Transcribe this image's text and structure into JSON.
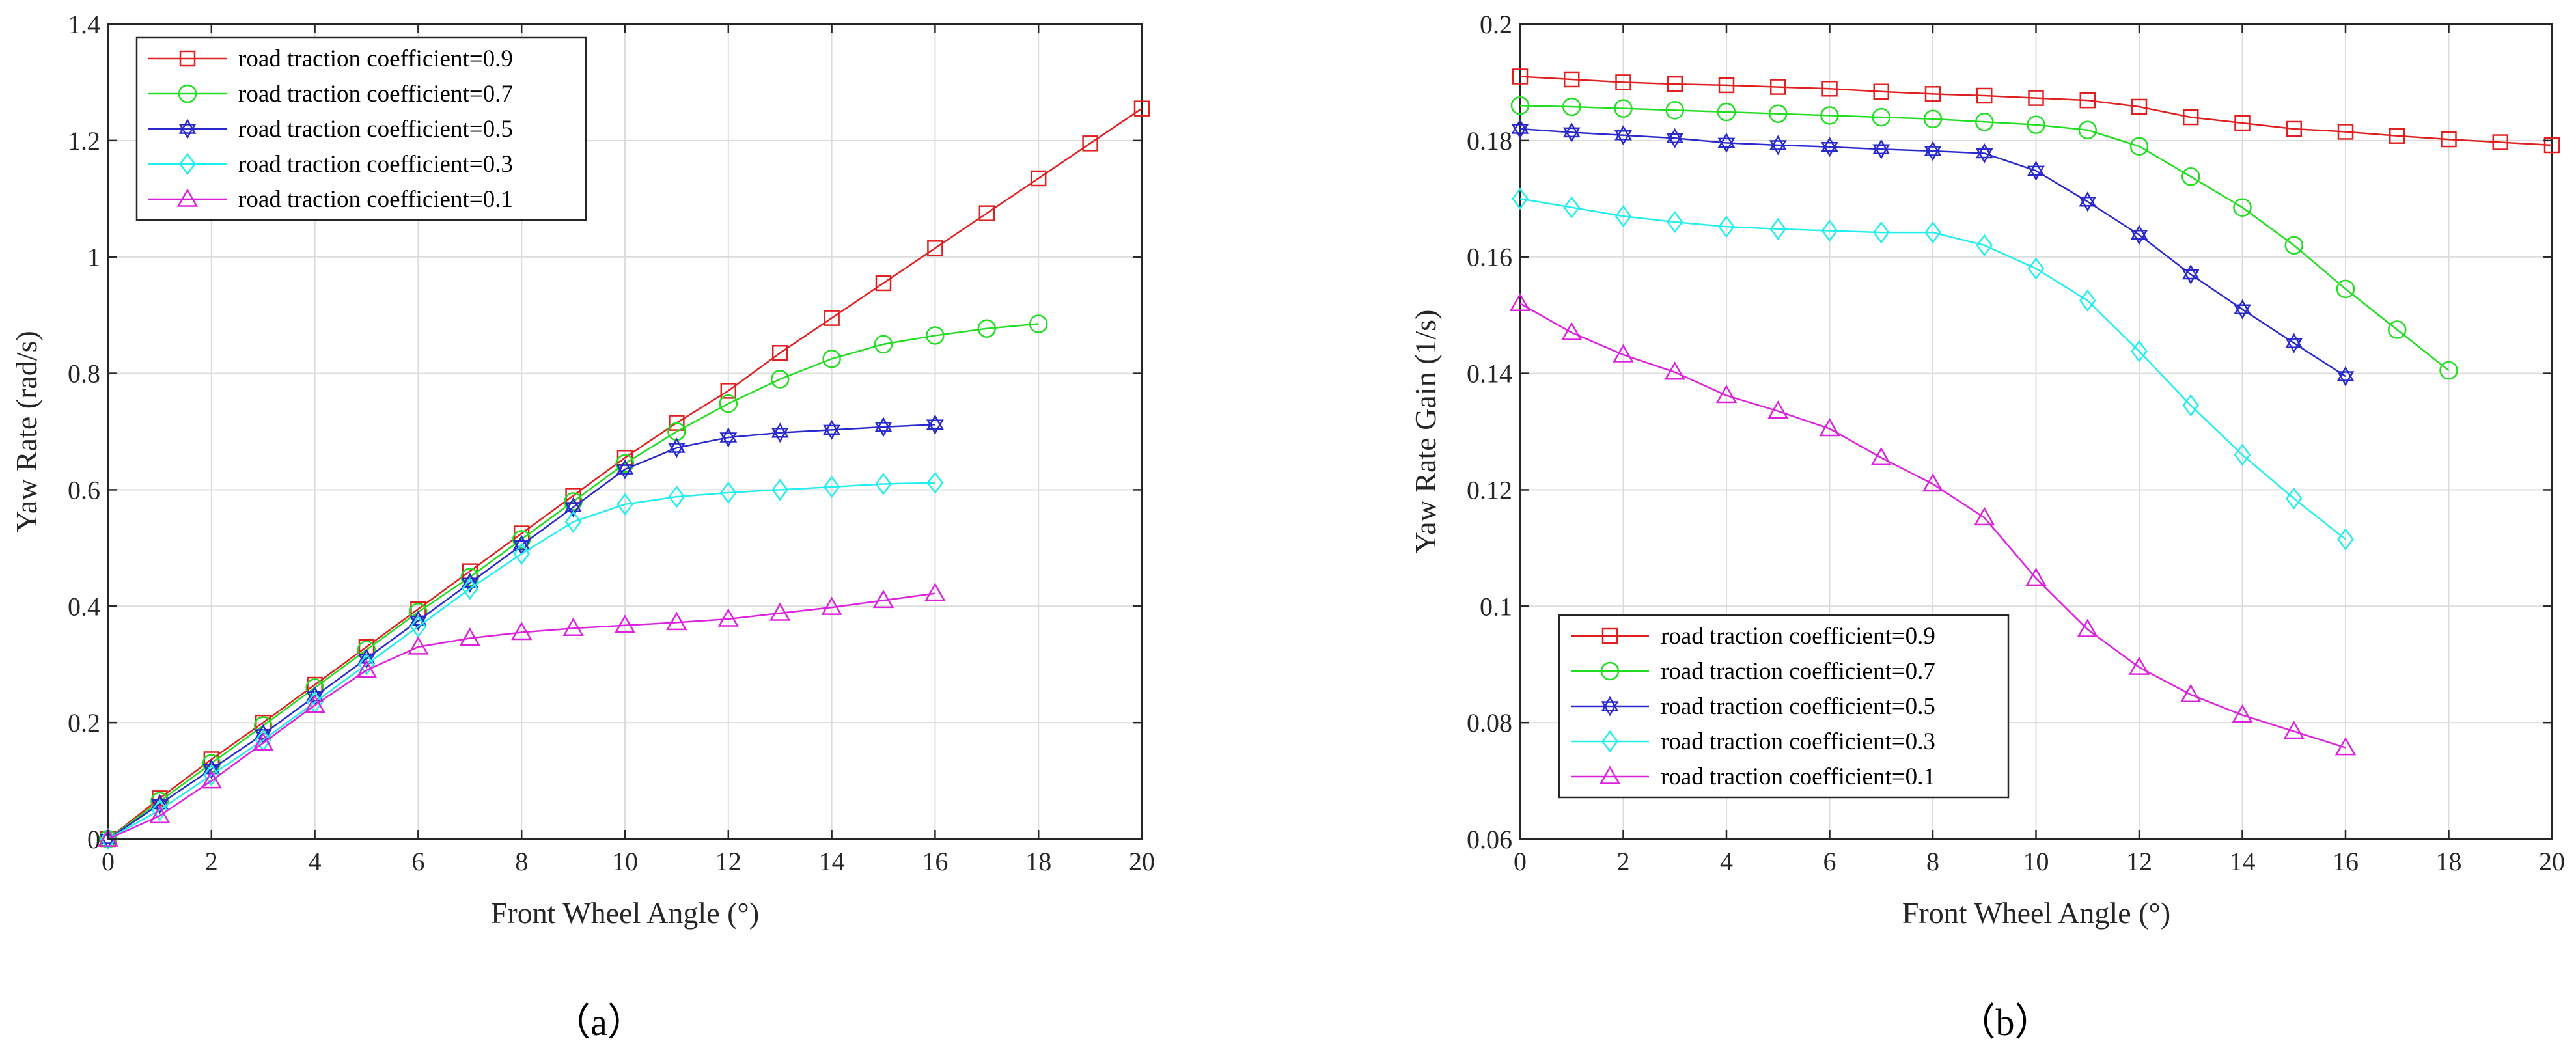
{
  "chart_data": [
    {
      "type": "line",
      "panel": "a",
      "caption": "（a）",
      "title": "",
      "xlabel": "Front Wheel Angle (°)",
      "ylabel": "Yaw Rate (rad/s)",
      "xlim": [
        0,
        20
      ],
      "ylim": [
        0,
        1.4
      ],
      "xticks": [
        "0",
        "2",
        "4",
        "6",
        "8",
        "10",
        "12",
        "14",
        "16",
        "18",
        "20"
      ],
      "yticks": [
        "0",
        "0.2",
        "0.4",
        "0.6",
        "0.8",
        "1",
        "1.2",
        "1.4"
      ],
      "grid": true,
      "legend_position": "top-left",
      "series": [
        {
          "name": "road traction coefficient=0.9",
          "color": "#e02020",
          "marker": "square",
          "x": [
            0,
            1,
            2,
            3,
            4,
            5,
            6,
            7,
            8,
            9,
            10,
            11,
            12,
            13,
            14,
            15,
            16,
            17,
            18,
            19,
            20
          ],
          "values": [
            0,
            0.07,
            0.137,
            0.2,
            0.265,
            0.33,
            0.395,
            0.46,
            0.525,
            0.59,
            0.655,
            0.715,
            0.77,
            0.835,
            0.895,
            0.955,
            1.015,
            1.075,
            1.135,
            1.195,
            1.255
          ]
        },
        {
          "name": "road traction coefficient=0.7",
          "color": "#22dd22",
          "marker": "circle",
          "x": [
            0,
            1,
            2,
            3,
            4,
            5,
            6,
            7,
            8,
            9,
            10,
            11,
            12,
            13,
            14,
            15,
            16,
            17,
            18
          ],
          "values": [
            0,
            0.065,
            0.13,
            0.195,
            0.26,
            0.325,
            0.39,
            0.45,
            0.515,
            0.58,
            0.645,
            0.7,
            0.748,
            0.79,
            0.825,
            0.85,
            0.865,
            0.877,
            0.885
          ]
        },
        {
          "name": "road traction coefficient=0.5",
          "color": "#2a2acc",
          "marker": "hexagram",
          "x": [
            0,
            1,
            2,
            3,
            4,
            5,
            6,
            7,
            8,
            9,
            10,
            11,
            12,
            13,
            14,
            15,
            16
          ],
          "values": [
            0,
            0.06,
            0.12,
            0.18,
            0.245,
            0.31,
            0.375,
            0.44,
            0.505,
            0.57,
            0.635,
            0.672,
            0.69,
            0.698,
            0.703,
            0.708,
            0.712
          ]
        },
        {
          "name": "road traction coefficient=0.3",
          "color": "#22eeee",
          "marker": "diamond",
          "x": [
            0,
            1,
            2,
            3,
            4,
            5,
            6,
            7,
            8,
            9,
            10,
            11,
            12,
            13,
            14,
            15,
            16
          ],
          "values": [
            0,
            0.05,
            0.11,
            0.17,
            0.235,
            0.3,
            0.365,
            0.43,
            0.49,
            0.545,
            0.575,
            0.588,
            0.595,
            0.6,
            0.605,
            0.61,
            0.612
          ]
        },
        {
          "name": "road traction coefficient=0.1",
          "color": "#dd22dd",
          "marker": "triangle",
          "x": [
            0,
            1,
            2,
            3,
            4,
            5,
            6,
            7,
            8,
            9,
            10,
            11,
            12,
            13,
            14,
            15,
            16
          ],
          "values": [
            0,
            0.04,
            0.1,
            0.165,
            0.23,
            0.29,
            0.33,
            0.345,
            0.355,
            0.362,
            0.367,
            0.372,
            0.378,
            0.388,
            0.398,
            0.41,
            0.422
          ]
        }
      ]
    },
    {
      "type": "line",
      "panel": "b",
      "caption": "（b）",
      "title": "",
      "xlabel": "Front Wheel Angle (°)",
      "ylabel": "Yaw Rate Gain (1/s)",
      "xlim": [
        0,
        20
      ],
      "ylim": [
        0.06,
        0.2
      ],
      "xticks": [
        "0",
        "2",
        "4",
        "6",
        "8",
        "10",
        "12",
        "14",
        "16",
        "18",
        "20"
      ],
      "yticks": [
        "0.06",
        "0.08",
        "0.1",
        "0.12",
        "0.14",
        "0.16",
        "0.18",
        "0.2"
      ],
      "grid": true,
      "legend_position": "bottom-left",
      "series": [
        {
          "name": "road traction coefficient=0.9",
          "color": "#e02020",
          "marker": "square",
          "x": [
            0,
            1,
            2,
            3,
            4,
            5,
            6,
            7,
            8,
            9,
            10,
            11,
            12,
            13,
            14,
            15,
            16,
            17,
            18,
            19,
            20
          ],
          "values": [
            0.191,
            0.1905,
            0.19,
            0.1897,
            0.1895,
            0.1892,
            0.1889,
            0.1884,
            0.188,
            0.1877,
            0.1873,
            0.1869,
            0.1858,
            0.184,
            0.183,
            0.182,
            0.1815,
            0.1808,
            0.1802,
            0.1797,
            0.1792
          ]
        },
        {
          "name": "road traction coefficient=0.7",
          "color": "#22dd22",
          "marker": "circle",
          "x": [
            0,
            1,
            2,
            3,
            4,
            5,
            6,
            7,
            8,
            9,
            10,
            11,
            12,
            13,
            14,
            15,
            16,
            17,
            18
          ],
          "values": [
            0.186,
            0.1858,
            0.1855,
            0.1852,
            0.1849,
            0.1846,
            0.1843,
            0.184,
            0.1837,
            0.1832,
            0.1827,
            0.1818,
            0.179,
            0.1738,
            0.1685,
            0.162,
            0.1545,
            0.1475,
            0.1405
          ]
        },
        {
          "name": "road traction coefficient=0.5",
          "color": "#2a2acc",
          "marker": "hexagram",
          "x": [
            0,
            1,
            2,
            3,
            4,
            5,
            6,
            7,
            8,
            9,
            10,
            11,
            12,
            13,
            14,
            15,
            16
          ],
          "values": [
            0.182,
            0.1814,
            0.1809,
            0.1804,
            0.1796,
            0.1792,
            0.1789,
            0.1785,
            0.1782,
            0.1778,
            0.1748,
            0.1695,
            0.1638,
            0.157,
            0.151,
            0.1452,
            0.1395
          ]
        },
        {
          "name": "road traction coefficient=0.3",
          "color": "#22eeee",
          "marker": "diamond",
          "x": [
            0,
            1,
            2,
            3,
            4,
            5,
            6,
            7,
            8,
            9,
            10,
            11,
            12,
            13,
            14,
            15,
            16
          ],
          "values": [
            0.17,
            0.1685,
            0.167,
            0.166,
            0.1652,
            0.1648,
            0.1645,
            0.1642,
            0.1642,
            0.162,
            0.158,
            0.1525,
            0.1438,
            0.1345,
            0.126,
            0.1185,
            0.1115
          ]
        },
        {
          "name": "road traction coefficient=0.1",
          "color": "#dd22dd",
          "marker": "triangle",
          "x": [
            0,
            1,
            2,
            3,
            4,
            5,
            6,
            7,
            8,
            9,
            10,
            11,
            12,
            13,
            14,
            15,
            16
          ],
          "values": [
            0.152,
            0.147,
            0.1432,
            0.1402,
            0.1362,
            0.1335,
            0.1305,
            0.1255,
            0.121,
            0.1152,
            0.1048,
            0.096,
            0.0895,
            0.0848,
            0.0813,
            0.0785,
            0.0757
          ]
        }
      ]
    }
  ]
}
